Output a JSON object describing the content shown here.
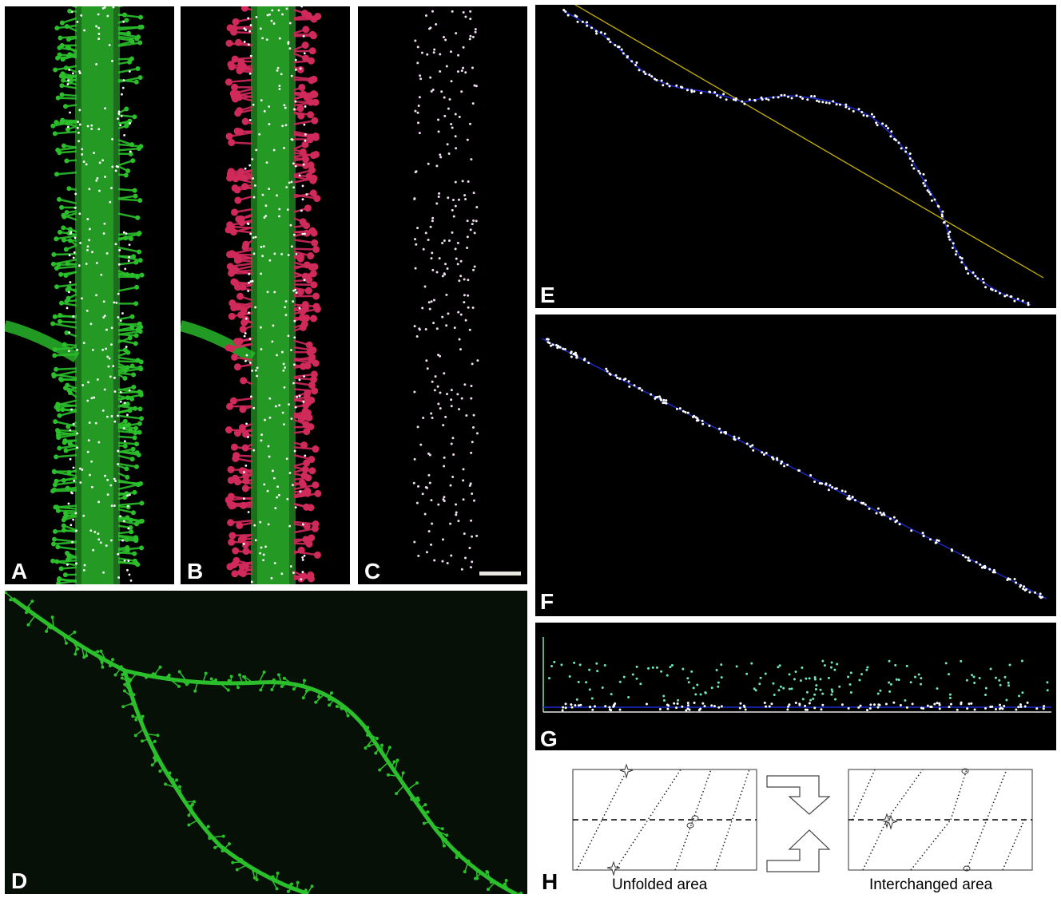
{
  "panels": {
    "A": {
      "label": "A"
    },
    "B": {
      "label": "B"
    },
    "C": {
      "label": "C"
    },
    "D": {
      "label": "D"
    },
    "E": {
      "label": "E"
    },
    "F": {
      "label": "F"
    },
    "G": {
      "label": "G"
    },
    "H": {
      "label": "H",
      "left_caption": "Unfolded area",
      "right_caption": "Interchanged area"
    }
  },
  "colors": {
    "dendrite_green": "#2bbf2b",
    "spine_red": "#d02a5a",
    "point_white": "#ffffff",
    "curve_blue": "#1a2ad0",
    "line_yellow": "#c8b400",
    "point_cyan": "#6fe8c0"
  }
}
